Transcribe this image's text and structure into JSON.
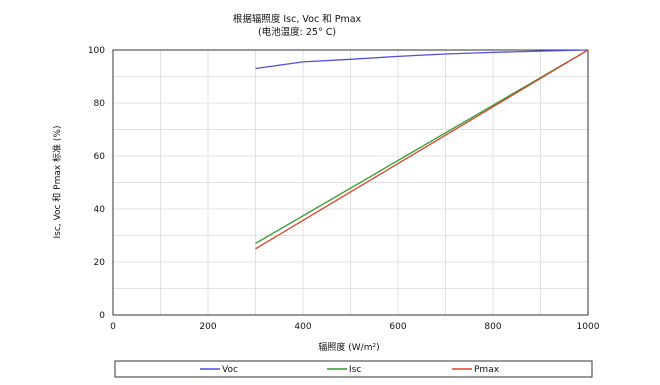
{
  "chart_data": {
    "type": "line",
    "title": "根据辐照度 Isc, Voc 和 Pmax",
    "subtitle": "(电池温度: 25° C)",
    "xlabel": "辐照度 (W/m²)",
    "ylabel": "Isc, Voc 和 Pmax 标准 (%)",
    "xlim": [
      0,
      1000
    ],
    "ylim": [
      0,
      100
    ],
    "xticks": [
      0,
      200,
      400,
      600,
      800,
      1000
    ],
    "yticks": [
      0,
      20,
      40,
      60,
      80,
      100
    ],
    "grid": true,
    "legend_position": "bottom",
    "series": [
      {
        "name": "Voc",
        "color": "#4f4fe0",
        "x": [
          300,
          400,
          500,
          600,
          700,
          800,
          900,
          1000
        ],
        "y": [
          93,
          95.5,
          96.5,
          97.6,
          98.5,
          99.1,
          99.6,
          100
        ]
      },
      {
        "name": "Isc",
        "color": "#2e9e2e",
        "x": [
          300,
          1000
        ],
        "y": [
          27,
          100
        ]
      },
      {
        "name": "Pmax",
        "color": "#e0402a",
        "x": [
          300,
          1000
        ],
        "y": [
          25,
          100
        ]
      }
    ]
  }
}
